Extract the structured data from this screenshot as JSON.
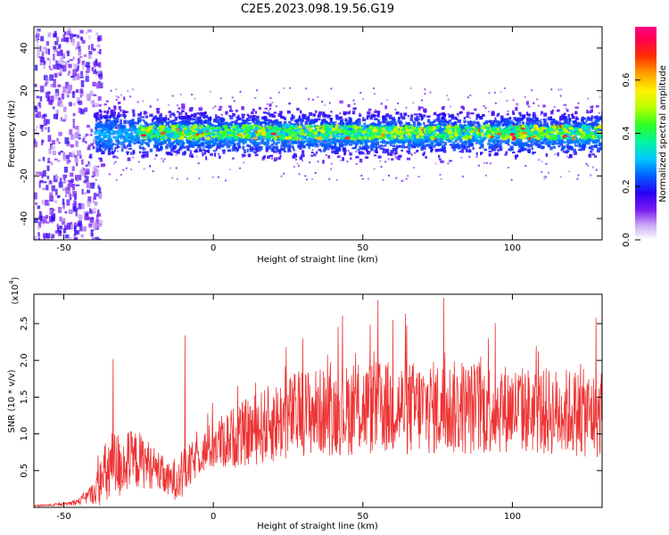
{
  "title": "C2E5.2023.098.19.56.G19",
  "colors": {
    "snr_line": "#ee3333",
    "background": "#ffffff",
    "axis": "#000000"
  },
  "chart_data": [
    {
      "type": "heatmap",
      "xlabel": "Height of straight line (km)",
      "ylabel": "Frequency (Hz)",
      "xlim": [
        -60,
        130
      ],
      "ylim": [
        -50,
        50
      ],
      "xticks": [
        -50,
        0,
        50,
        100
      ],
      "yticks": [
        -40,
        -20,
        0,
        20,
        40
      ],
      "description_series": "spectrogram: energy centred near 0 Hz from -35 to 130 km, broad diffuse energy below -40 km",
      "colorbar": {
        "label": "Normalized spectral amplitude",
        "range": [
          0.0,
          0.8
        ],
        "ticks": [
          "0.0",
          "0.2",
          "0.4",
          "0.6"
        ]
      }
    },
    {
      "type": "line",
      "xlabel": "Height of straight line (km)",
      "ylabel": "SNR (10 * v/v)",
      "scale_label": "(x10",
      "scale_exp": "4",
      "scale_close": ")",
      "xlim": [
        -60,
        130
      ],
      "ylim": [
        0,
        2.9
      ],
      "xticks": [
        -50,
        0,
        50,
        100
      ],
      "yticks": [
        0.5,
        1.0,
        1.5,
        2.0,
        2.5
      ],
      "ytick_labels": [
        "0.5",
        "1.0",
        "1.5",
        "2.0",
        "2.5"
      ],
      "envelope": {
        "x": [
          -60,
          -50,
          -45,
          -40,
          -35,
          -30,
          -25,
          -20,
          -15,
          -10,
          -5,
          0,
          10,
          20,
          30,
          40,
          50,
          60,
          70,
          80,
          90,
          100,
          110,
          120,
          130
        ],
        "base": [
          0.02,
          0.04,
          0.08,
          0.2,
          0.5,
          0.6,
          0.65,
          0.55,
          0.35,
          0.45,
          0.7,
          0.85,
          1.0,
          1.15,
          1.3,
          1.3,
          1.35,
          1.35,
          1.35,
          1.35,
          1.35,
          1.35,
          1.3,
          1.3,
          1.25
        ],
        "amp": [
          0.01,
          0.02,
          0.05,
          0.15,
          0.55,
          0.45,
          0.4,
          0.3,
          0.25,
          0.35,
          0.25,
          0.35,
          0.45,
          0.55,
          0.6,
          0.6,
          0.65,
          0.65,
          0.65,
          0.65,
          0.65,
          0.6,
          0.6,
          0.6,
          0.6
        ]
      },
      "peaks": [
        [
          -33.5,
          2.02
        ],
        [
          -9.5,
          2.34
        ],
        [
          55,
          2.82
        ],
        [
          77,
          2.85
        ],
        [
          60,
          2.55
        ],
        [
          92,
          2.3
        ],
        [
          128,
          2.58
        ]
      ],
      "n_points": 1400
    }
  ]
}
